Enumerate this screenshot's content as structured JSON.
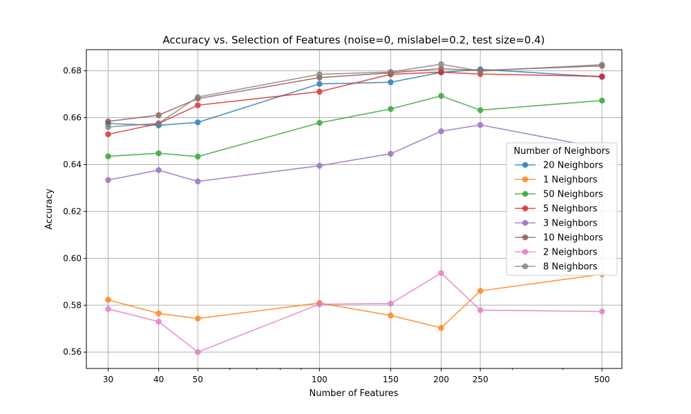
{
  "chart_data": {
    "type": "line",
    "title": "Accuracy vs. Selection of Features (noise=0, mislabel=0.2, test size=0.4)",
    "xlabel": "Number of Features",
    "ylabel": "Accuracy",
    "x_scale": "log",
    "x": [
      30,
      40,
      50,
      100,
      150,
      200,
      250,
      500
    ],
    "x_tick_labels": [
      "30",
      "40",
      "50",
      "100",
      "150",
      "200",
      "250",
      "500"
    ],
    "ylim": [
      0.553,
      0.689
    ],
    "y_ticks": [
      0.56,
      0.58,
      0.6,
      0.62,
      0.64,
      0.66,
      0.68
    ],
    "y_tick_labels": [
      "0.56",
      "0.58",
      "0.60",
      "0.62",
      "0.64",
      "0.66",
      "0.68"
    ],
    "grid": true,
    "legend_title": "Number of Neighbors",
    "legend_position": "center-right",
    "series": [
      {
        "name": "20 Neighbors",
        "color": "#1f77b4",
        "values": [
          0.6575,
          0.6567,
          0.658,
          0.6744,
          0.6751,
          0.6793,
          0.6806,
          0.6774
        ]
      },
      {
        "name": "1 Neighbors",
        "color": "#ff7f0e",
        "values": [
          0.5823,
          0.5765,
          0.5743,
          0.5809,
          0.5756,
          0.5703,
          0.5861,
          0.5932
        ]
      },
      {
        "name": "50 Neighbors",
        "color": "#2ca02c",
        "values": [
          0.6435,
          0.6448,
          0.6434,
          0.6578,
          0.6637,
          0.6693,
          0.6632,
          0.6673
        ]
      },
      {
        "name": "5 Neighbors",
        "color": "#d62728",
        "values": [
          0.6529,
          0.6575,
          0.6653,
          0.6711,
          0.6785,
          0.6794,
          0.6786,
          0.6776
        ]
      },
      {
        "name": "3 Neighbors",
        "color": "#9467bd",
        "values": [
          0.6334,
          0.6376,
          0.6328,
          0.6395,
          0.6446,
          0.6542,
          0.6569,
          0.647
        ]
      },
      {
        "name": "10 Neighbors",
        "color": "#8c564b",
        "values": [
          0.6584,
          0.6611,
          0.6681,
          0.6771,
          0.6791,
          0.6809,
          0.6801,
          0.6821
        ]
      },
      {
        "name": "2 Neighbors",
        "color": "#e377c2",
        "values": [
          0.5784,
          0.573,
          0.56,
          0.5804,
          0.5807,
          0.5937,
          0.5779,
          0.5773
        ]
      },
      {
        "name": "8 Neighbors",
        "color": "#7f7f7f",
        "values": [
          0.656,
          0.6576,
          0.6688,
          0.6785,
          0.6795,
          0.6828,
          0.6799,
          0.6826
        ]
      }
    ]
  }
}
